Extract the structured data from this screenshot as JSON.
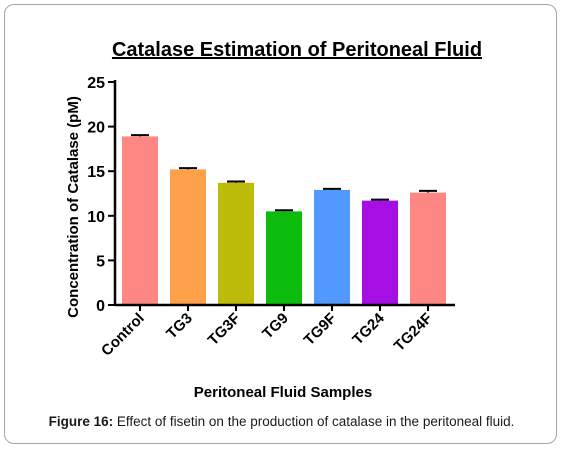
{
  "chart_data": {
    "type": "bar",
    "title": "Catalase Estimation of Peritoneal Fluid",
    "xlabel": "Peritoneal Fluid Samples",
    "ylabel": "Concentration of Catalase (pM)",
    "ylim": [
      0,
      25
    ],
    "yticks": [
      "0",
      "5",
      "10",
      "15",
      "20",
      "25"
    ],
    "grid": false,
    "categories": [
      "Control",
      "TG3",
      "TG3F",
      "TG9",
      "TG9F",
      "TG24",
      "TG24F"
    ],
    "values": [
      18.9,
      15.2,
      13.7,
      10.5,
      12.9,
      11.7,
      12.6
    ],
    "errors": [
      0.15,
      0.15,
      0.15,
      0.12,
      0.12,
      0.12,
      0.2
    ],
    "colors": [
      "#ff8783",
      "#ffa04a",
      "#bcbb0a",
      "#0dbb0d",
      "#5299ff",
      "#a50fe3",
      "#ff8783"
    ]
  },
  "caption": {
    "label": "Figure 16:",
    "text": " Effect of fisetin on the production of catalase in the peritoneal fluid."
  }
}
